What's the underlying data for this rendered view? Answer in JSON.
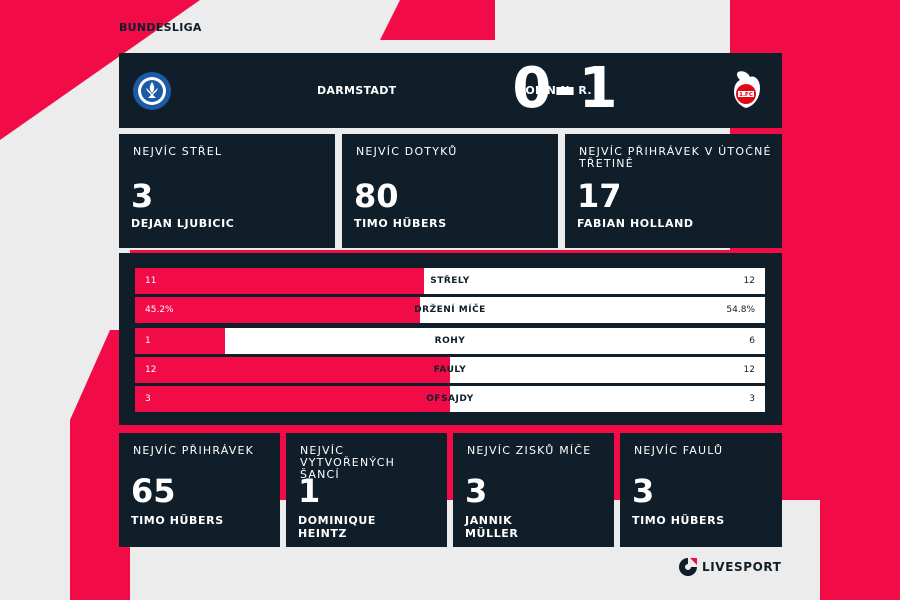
{
  "league": "BUNDESLIGA",
  "header": {
    "home_team": "DARMSTADT",
    "away_team": "KOLÍN N. R.",
    "score": "0-1",
    "home_crest": "darmstadt-lily-crest",
    "away_crest": "koln-goat-crest"
  },
  "top_cards": [
    {
      "label": "NEJVÍC STŘEL",
      "value": "3",
      "player": "DEJAN LJUBICIC"
    },
    {
      "label": "NEJVÍC DOTYKŮ",
      "value": "80",
      "player": "TIMO HÜBERS"
    },
    {
      "label": "NEJVÍC PŘIHRÁVEK V ÚTOČNÉ TŘETINĚ",
      "value": "17",
      "player": "FABIAN HOLLAND"
    }
  ],
  "stats": [
    {
      "label": "STŘELY",
      "home": "11",
      "away": "12",
      "home_share": 0.458
    },
    {
      "label": "DRŽENÍ MÍČE",
      "home": "45.2%",
      "away": "54.8%",
      "home_share": 0.452
    },
    {
      "label": "ROHY",
      "home": "1",
      "away": "6",
      "home_share": 0.143
    },
    {
      "label": "FAULY",
      "home": "12",
      "away": "12",
      "home_share": 0.5
    },
    {
      "label": "OFSAJDY",
      "home": "3",
      "away": "3",
      "home_share": 0.5
    }
  ],
  "bottom_cards": [
    {
      "label": "NEJVÍC PŘIHRÁVEK",
      "value": "65",
      "player": "TIMO HÜBERS"
    },
    {
      "label": "NEJVÍC VYTVOŘENÝCH ŠANCÍ",
      "value": "1",
      "player": "DOMINIQUE HEINTZ"
    },
    {
      "label": "NEJVÍC ZISKŮ MÍČE",
      "value": "3",
      "player": "JANNIK MÜLLER"
    },
    {
      "label": "NEJVÍC FAULŮ",
      "value": "3",
      "player": "TIMO HÜBERS"
    }
  ],
  "brand": "LIVESPORT",
  "colors": {
    "accent": "#f20c47",
    "panel": "#0f1e28",
    "background": "#ececec"
  }
}
